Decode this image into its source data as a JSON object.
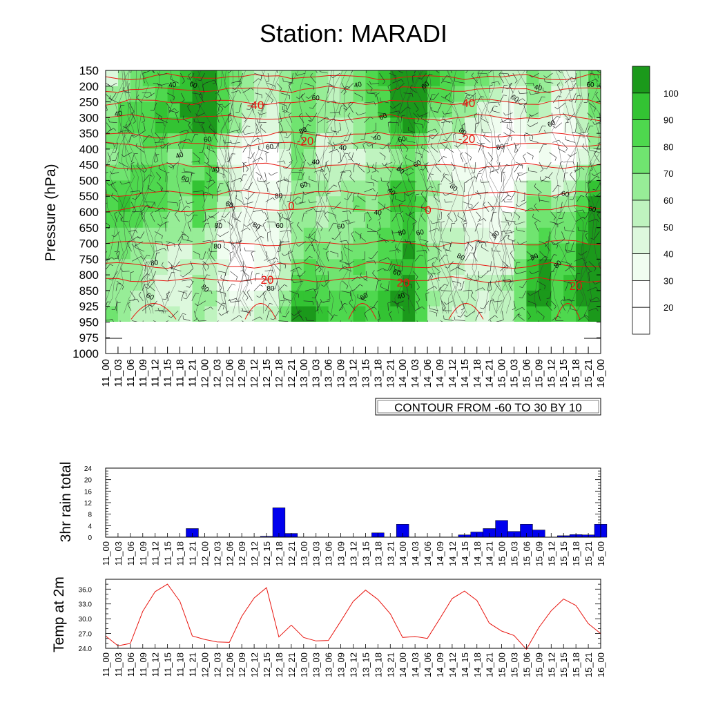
{
  "title": "Station: MARADI",
  "time_labels": [
    "11_00",
    "11_03",
    "11_06",
    "11_09",
    "11_12",
    "11_15",
    "11_18",
    "11_21",
    "12_00",
    "12_03",
    "12_06",
    "12_09",
    "12_12",
    "12_15",
    "12_18",
    "12_21",
    "13_00",
    "13_03",
    "13_06",
    "13_09",
    "13_12",
    "13_15",
    "13_18",
    "13_21",
    "14_00",
    "14_03",
    "14_06",
    "14_09",
    "14_12",
    "14_15",
    "14_18",
    "14_21",
    "15_00",
    "15_03",
    "15_06",
    "15_09",
    "15_12",
    "15_15",
    "15_18",
    "15_21",
    "16_00"
  ],
  "colors": {
    "red": "#e8150f",
    "rain": "#0000ee",
    "green_levels": [
      "#ffffff",
      "#f0fdf0",
      "#ddf8dd",
      "#bff3bf",
      "#97ed97",
      "#70e470",
      "#4ed84e",
      "#33c333",
      "#1b991b"
    ]
  },
  "chart_data": [
    {
      "type": "heatmap",
      "title": "",
      "ylabel": "Pressure (hPa)",
      "y_ticks": [
        "150",
        "200",
        "250",
        "300",
        "350",
        "400",
        "450",
        "500",
        "550",
        "600",
        "650",
        "700",
        "750",
        "800",
        "850",
        "925",
        "950",
        "975",
        "1000"
      ],
      "contour_note": "CONTOUR FROM -60 TO 30 BY 10",
      "colorbar_labels": [
        "100",
        "90",
        "80",
        "70",
        "60",
        "50",
        "40",
        "30",
        "20"
      ],
      "temperature_isotherms": [
        {
          "label": "-40",
          "pressure": 250
        },
        {
          "label": "-20",
          "pressure": 385
        },
        {
          "label": "0",
          "pressure": 590
        },
        {
          "label": "20",
          "pressure": 815
        }
      ],
      "humidity_contour_labels": [
        "40",
        "60",
        "80"
      ]
    },
    {
      "type": "bar",
      "ylabel": "3hr rain total",
      "ylim": [
        0,
        24
      ],
      "y_ticks": [
        "0",
        "4",
        "8",
        "12",
        "16",
        "20",
        "24"
      ],
      "values": [
        0,
        0,
        0,
        0,
        0,
        0,
        0,
        3.0,
        0,
        0,
        0,
        0,
        0,
        0.3,
        10.2,
        1.3,
        0,
        0,
        0,
        0,
        0,
        0,
        1.5,
        0,
        4.5,
        0,
        0,
        0,
        0,
        0.8,
        1.8,
        3.0,
        5.8,
        2.0,
        4.5,
        2.5,
        0,
        0.5,
        0.9,
        0.8,
        4.5
      ]
    },
    {
      "type": "line",
      "ylabel": "Temp at 2m",
      "ylim": [
        24,
        38
      ],
      "y_ticks": [
        "24.0",
        "27.0",
        "30.0",
        "33.0",
        "36.0"
      ],
      "values": [
        26.5,
        24.5,
        25.0,
        31.5,
        35.5,
        37.0,
        33.5,
        26.5,
        25.8,
        25.3,
        25.2,
        30.5,
        34.2,
        36.3,
        26.3,
        28.7,
        26.2,
        25.5,
        25.6,
        29.5,
        33.5,
        35.8,
        33.9,
        31.0,
        26.2,
        26.4,
        26.0,
        30.0,
        34.1,
        35.6,
        33.7,
        29.1,
        27.5,
        26.6,
        23.8,
        28.2,
        31.6,
        34.0,
        32.7,
        29.0,
        27.0
      ]
    }
  ]
}
